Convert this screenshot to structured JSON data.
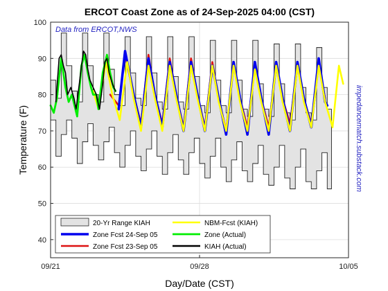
{
  "chart_data": {
    "type": "line",
    "title": "ERCOT Coast Zone as of 24-Sep-2025 04:00 (CST)",
    "xlabel": "Day/Date (CST)",
    "ylabel": "Temperature (F)",
    "source_note": "Data from ERCOT,NWS",
    "side_note": "impedancematch.substack.com",
    "xlim": [
      "2025-09-21 00:00",
      "2025-10-05 00:00"
    ],
    "ylim": [
      35,
      100
    ],
    "xticks": [
      "09/21",
      "09/28",
      "10/05"
    ],
    "yticks": [
      40,
      50,
      60,
      70,
      80,
      90,
      100
    ],
    "grid": true,
    "legend_position": "bottom-left",
    "colors": {
      "range_fill": "#e3e3e3",
      "zone_fcst_24": "#0000ee",
      "zone_fcst_23": "#dd1111",
      "nbm_fcst": "#ffff00",
      "zone_actual": "#00ee00",
      "kiah_actual": "#000000"
    },
    "series": [
      {
        "name": "20-Yr Range KIAH",
        "kind": "band",
        "x_day": [
          0,
          0.25,
          0.5,
          0.75,
          1,
          1.25,
          1.5,
          1.75,
          2,
          2.25,
          2.5,
          2.75,
          3,
          3.25,
          3.5,
          3.75,
          4,
          4.25,
          4.5,
          4.75,
          5,
          5.25,
          5.5,
          5.75,
          6,
          6.25,
          6.5,
          6.75,
          7,
          7.25,
          7.5,
          7.75,
          8,
          8.25,
          8.5,
          8.75,
          9,
          9.25,
          9.5,
          9.75,
          10,
          10.25,
          10.5,
          10.75,
          11,
          11.25,
          11.5,
          11.75,
          12,
          12.25,
          12.5,
          12.75,
          13
        ],
        "low": [
          73,
          63,
          69,
          73,
          68,
          61,
          67,
          72,
          66,
          62,
          67,
          71,
          64,
          60,
          66,
          70,
          63,
          59,
          65,
          70,
          63,
          58,
          64,
          69,
          62,
          58,
          64,
          68,
          61,
          57,
          63,
          68,
          60,
          56,
          62,
          67,
          59,
          56,
          61,
          66,
          58,
          55,
          60,
          66,
          57,
          54,
          60,
          65,
          56,
          54,
          59,
          64,
          54
        ],
        "high": [
          84,
          79,
          97,
          88,
          81,
          78,
          97,
          88,
          80,
          78,
          97,
          87,
          80,
          77,
          96,
          86,
          79,
          77,
          96,
          86,
          78,
          76,
          96,
          85,
          78,
          76,
          96,
          85,
          77,
          75,
          95,
          84,
          77,
          75,
          95,
          84,
          76,
          74,
          95,
          83,
          76,
          74,
          94,
          83,
          75,
          73,
          94,
          82,
          75,
          73,
          93,
          82,
          76
        ]
      },
      {
        "name": "NBM-Fcst (KIAH)",
        "kind": "line",
        "x_day": [
          2,
          2.25,
          2.6,
          2.9,
          3.25,
          3.6,
          3.9,
          4.25,
          4.6,
          4.9,
          5.25,
          5.6,
          5.9,
          6.25,
          6.6,
          6.9,
          7.25,
          7.6,
          7.9,
          8.25,
          8.6,
          8.9,
          9.25,
          9.6,
          9.9,
          10.25,
          10.6,
          10.9,
          11.25,
          11.6,
          11.9,
          12.25,
          12.6,
          12.9,
          13.25,
          13.55,
          13.75
        ],
        "values": [
          81,
          76,
          89,
          80,
          73,
          89,
          79,
          70,
          88,
          79,
          70,
          88,
          79,
          70,
          88,
          79,
          70,
          88,
          78,
          70,
          88,
          78,
          70,
          87,
          78,
          70,
          88,
          78,
          70,
          88,
          78,
          71,
          88,
          78,
          71,
          88,
          83
        ]
      },
      {
        "name": "Zone Fcst 24-Sep 05",
        "kind": "line",
        "x_day": [
          3.2,
          3.5,
          3.9,
          4.25,
          4.6,
          4.9,
          5.25,
          5.6,
          5.9,
          6.25,
          6.6,
          6.9,
          7.25,
          7.6,
          7.9,
          8.25,
          8.6,
          8.9,
          9.25,
          9.6,
          9.9,
          10.25,
          10.6,
          10.9,
          11.25,
          11.6,
          11.9,
          12.25,
          12.6,
          12.9,
          13
        ],
        "values": [
          76,
          92,
          80,
          71,
          90,
          80,
          71,
          89,
          80,
          70,
          89,
          80,
          70,
          88,
          79,
          69,
          89,
          79,
          69,
          89,
          79,
          69,
          89,
          79,
          70,
          89,
          79,
          71,
          90,
          78,
          77
        ]
      },
      {
        "name": "Zone Fcst 23-Sep 05",
        "kind": "line",
        "x_day": [
          2.8,
          3.2,
          3.5,
          3.9,
          4.25,
          4.6,
          4.9,
          5.25,
          5.6,
          5.9,
          6.25,
          6.6,
          6.9,
          7.25,
          7.6,
          7.9,
          8.25,
          8.6,
          8.9,
          9.25,
          9.6,
          9.9,
          10.25,
          10.6,
          10.9,
          11.25,
          11.6,
          11.9,
          12.25,
          12.6,
          12.9
        ],
        "values": [
          80,
          77,
          91,
          80,
          72,
          91,
          80,
          72,
          90,
          80,
          71,
          90,
          80,
          71,
          89,
          79,
          70,
          89,
          79,
          71,
          88,
          79,
          71,
          88,
          79,
          72,
          88,
          79,
          72,
          88,
          79
        ]
      },
      {
        "name": "Zone (Actual)",
        "kind": "line",
        "x_day": [
          0,
          0.15,
          0.3,
          0.5,
          0.7,
          0.85,
          1.0,
          1.25,
          1.45,
          1.6,
          1.75,
          1.9,
          2.0,
          2.15,
          2.25,
          2.45,
          2.65,
          2.8,
          2.95,
          3.05
        ],
        "values": [
          77,
          75,
          79,
          90,
          82,
          78,
          80,
          74,
          88,
          91,
          86,
          82,
          80,
          80,
          76,
          86,
          91,
          86,
          82,
          81
        ]
      },
      {
        "name": "KIAH (Actual)",
        "kind": "line",
        "x_day": [
          0.25,
          0.3,
          0.4,
          0.5,
          0.6,
          0.7,
          0.8,
          0.95,
          1.1,
          1.2,
          1.35,
          1.45,
          1.55,
          1.65,
          1.75,
          1.85,
          2.0,
          2.15,
          2.3,
          2.45,
          2.55,
          2.65,
          2.75,
          2.9,
          3.05
        ],
        "values": [
          78,
          82,
          90,
          91,
          88,
          86,
          80,
          82,
          79,
          76,
          83,
          88,
          92,
          91,
          87,
          84,
          82,
          80,
          76,
          83,
          89,
          90,
          86,
          83,
          81
        ]
      }
    ],
    "legend": [
      "20-Yr Range KIAH",
      "NBM-Fcst (KIAH)",
      "Zone Fcst 24-Sep 05",
      "Zone (Actual)",
      "Zone Fcst 23-Sep 05",
      "KIAH (Actual)"
    ]
  }
}
